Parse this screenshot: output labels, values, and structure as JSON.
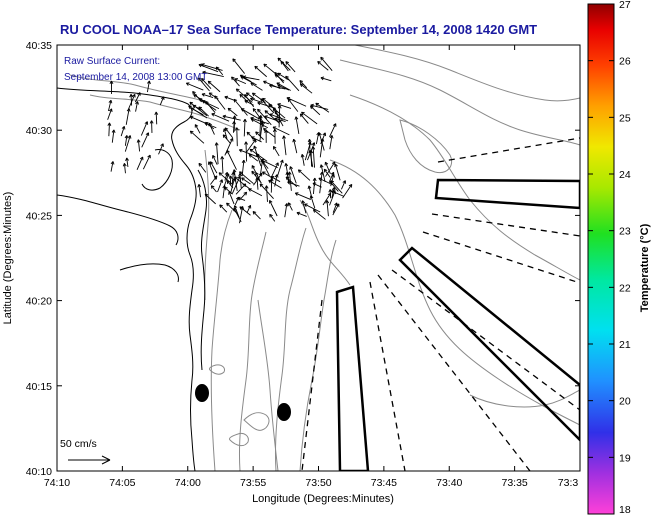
{
  "title": "RU COOL  NOAA–17  Sea Surface Temperature:  September 14, 2008 1420 GMT",
  "current_note": {
    "line1": "Raw Surface Current:",
    "line2": "September 14, 2008 13:00 GMT"
  },
  "scale_label": "50 cm/s",
  "x_axis": {
    "label": "Longitude (Degrees:Minutes)",
    "ticks": [
      "74:10",
      "74:05",
      "74:00",
      "73:55",
      "73:50",
      "73:45",
      "73:40",
      "73:35",
      "73:3"
    ]
  },
  "y_axis": {
    "label": "Latitude (Degrees:Minutes)",
    "ticks": [
      "40:35",
      "40:30",
      "40:25",
      "40:20",
      "40:15",
      "40:10"
    ]
  },
  "colorbar": {
    "label": "Temperature (°C)",
    "min": 18,
    "max": 27,
    "ticks": [
      "27",
      "26",
      "25",
      "24",
      "23",
      "22",
      "21",
      "20",
      "19",
      "18"
    ]
  },
  "colors": {
    "title": "#1a1aa0",
    "contour": "#8a8a8a"
  }
}
